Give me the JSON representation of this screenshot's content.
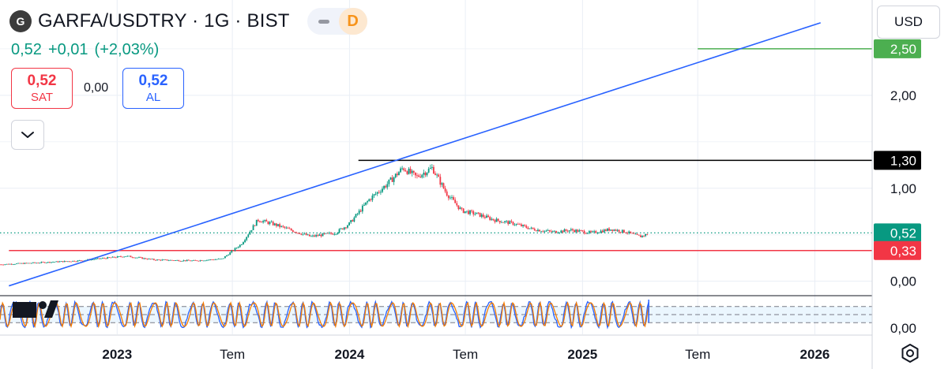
{
  "header": {
    "logo_letter": "G",
    "title": "GARFA/USDTRY · 1G · BIST",
    "interval_badge": "D"
  },
  "quote": {
    "last": "0,52",
    "change": "+0,01",
    "change_pct": "(+2,03%)",
    "sell_value": "0,52",
    "sell_label": "SAT",
    "spread": "0,00",
    "buy_value": "0,52",
    "buy_label": "AL"
  },
  "currency": "USD",
  "colors": {
    "up": "#089981",
    "down": "#f23645",
    "trend_line": "#2962ff",
    "target_line": "#4caf50",
    "resistance_line": "#000000",
    "support_line": "#f23645",
    "stoch_k": "#2962ff",
    "stoch_d": "#f57c00"
  },
  "chart_data": {
    "type": "candlestick",
    "ylim": [
      -0.13,
      2.94
    ],
    "y_ticks": [
      {
        "value": 0.0,
        "label": "0,00"
      },
      {
        "value": 1.0,
        "label": "1,00"
      },
      {
        "value": 2.0,
        "label": "2,00"
      }
    ],
    "x_range": [
      "2022-07-01",
      "2026-04-01"
    ],
    "x_ticks": [
      {
        "date": "2023-01-01",
        "label": "2023",
        "bold": true
      },
      {
        "date": "2023-07-01",
        "label": "Tem",
        "bold": false
      },
      {
        "date": "2024-01-01",
        "label": "2024",
        "bold": true
      },
      {
        "date": "2024-07-01",
        "label": "Tem",
        "bold": false
      },
      {
        "date": "2025-01-01",
        "label": "2025",
        "bold": true
      },
      {
        "date": "2025-07-01",
        "label": "Tem",
        "bold": false
      },
      {
        "date": "2026-01-01",
        "label": "2026",
        "bold": true
      }
    ],
    "price_path": [
      {
        "date": "2022-07-01",
        "value": 0.18
      },
      {
        "date": "2022-11-01",
        "value": 0.22
      },
      {
        "date": "2023-01-15",
        "value": 0.27
      },
      {
        "date": "2023-03-01",
        "value": 0.23
      },
      {
        "date": "2023-05-01",
        "value": 0.22
      },
      {
        "date": "2023-06-15",
        "value": 0.24
      },
      {
        "date": "2023-07-15",
        "value": 0.4
      },
      {
        "date": "2023-08-10",
        "value": 0.66
      },
      {
        "date": "2023-09-01",
        "value": 0.62
      },
      {
        "date": "2023-10-01",
        "value": 0.55
      },
      {
        "date": "2023-11-01",
        "value": 0.48
      },
      {
        "date": "2023-12-10",
        "value": 0.52
      },
      {
        "date": "2024-01-01",
        "value": 0.62
      },
      {
        "date": "2024-02-01",
        "value": 0.88
      },
      {
        "date": "2024-03-01",
        "value": 1.05
      },
      {
        "date": "2024-03-25",
        "value": 1.22
      },
      {
        "date": "2024-04-15",
        "value": 1.12
      },
      {
        "date": "2024-05-10",
        "value": 1.22
      },
      {
        "date": "2024-06-01",
        "value": 0.95
      },
      {
        "date": "2024-06-25",
        "value": 0.76
      },
      {
        "date": "2024-07-20",
        "value": 0.72
      },
      {
        "date": "2024-08-15",
        "value": 0.66
      },
      {
        "date": "2024-09-15",
        "value": 0.62
      },
      {
        "date": "2024-10-15",
        "value": 0.56
      },
      {
        "date": "2024-11-15",
        "value": 0.53
      },
      {
        "date": "2024-12-15",
        "value": 0.55
      },
      {
        "date": "2025-01-15",
        "value": 0.52
      },
      {
        "date": "2025-02-15",
        "value": 0.56
      },
      {
        "date": "2025-03-10",
        "value": 0.53
      },
      {
        "date": "2025-04-01",
        "value": 0.48
      },
      {
        "date": "2025-04-15",
        "value": 0.51
      }
    ],
    "trend_line": {
      "start": {
        "date": "2022-07-15",
        "value": -0.05
      },
      "end": {
        "date": "2026-01-10",
        "value": 2.78
      }
    },
    "horizontal_levels": [
      {
        "name": "current",
        "value": 0.52,
        "label": "0,52",
        "style": "dotted",
        "color": "#089981",
        "from": "2022-07-01"
      },
      {
        "name": "support",
        "value": 0.33,
        "label": "0,33",
        "style": "solid",
        "color": "#f23645",
        "from": "2022-07-15"
      },
      {
        "name": "resistance",
        "value": 1.3,
        "label": "1,30",
        "style": "solid",
        "color": "#000000",
        "from": "2024-01-15"
      },
      {
        "name": "target",
        "value": 2.5,
        "label": "2,50",
        "style": "solid",
        "color": "#4caf50",
        "from": "2025-07-01"
      }
    ],
    "oscillator": {
      "type": "stochastic",
      "tick_label": "0,00",
      "levels": [
        80,
        50,
        20
      ],
      "approx_cycles": 52
    }
  }
}
